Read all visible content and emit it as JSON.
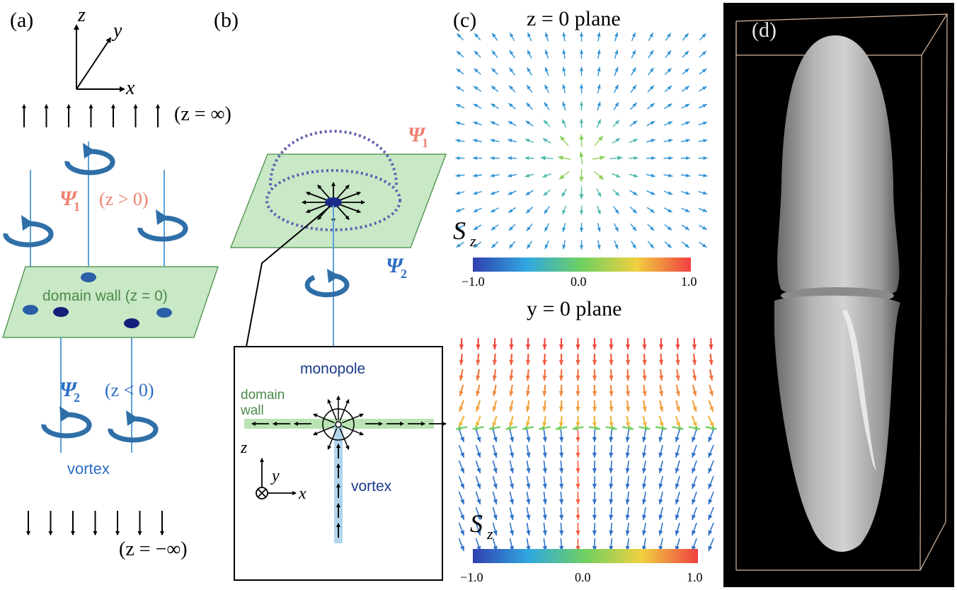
{
  "panels": {
    "a": {
      "label": "(a)",
      "axes": {
        "z": "z",
        "y": "y",
        "x": "x"
      },
      "top_caption": "(z = ∞)",
      "bottom_caption": "(z = −∞)",
      "psi1": "Ψ",
      "psi1_sub": "1",
      "psi1_region": "(z > 0)",
      "psi2": "Ψ",
      "psi2_sub": "2",
      "psi2_region": "(z < 0)",
      "wall_label": "domain wall (z = 0)",
      "vortex_label": "vortex",
      "colors": {
        "psi1": "#f08070",
        "psi2": "#2b6cc4",
        "wall_fill": "#c9e8c6",
        "wall_stroke": "#5a9a5a",
        "vortex_icon": "#2f6fa8"
      }
    },
    "b": {
      "label": "(b)",
      "psi1": "Ψ",
      "psi1_sub": "1",
      "psi2": "Ψ",
      "psi2_sub": "2",
      "inset": {
        "monopole_label": "monopole",
        "domain_label": "domain",
        "wall_label": "wall",
        "vortex_label": "vortex",
        "axes": {
          "z": "z",
          "y": "y",
          "x": "x"
        }
      }
    },
    "c": {
      "label": "(c)",
      "top_title": "z = 0 plane",
      "bottom_title": "y = 0 plane",
      "sz_symbol": "S",
      "sz_sub": "z",
      "colorbar_ticks": [
        "−1.0",
        "0.0",
        "1.0"
      ]
    },
    "d": {
      "label": "(d)",
      "colors": {
        "background": "#000000",
        "frame": "#d8b8a0",
        "surface": "#b8b8b8"
      }
    }
  }
}
